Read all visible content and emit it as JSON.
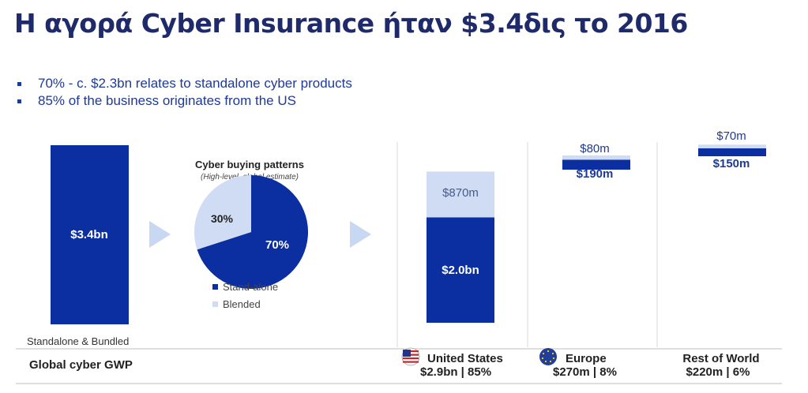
{
  "title": "Η αγορά Cyber Insurance ήταν $3.4δις το 2016",
  "bullets": [
    "70% - c. $2.3bn relates to standalone cyber products",
    "85% of the business originates from the US"
  ],
  "colors": {
    "dark": "#0b2fa0",
    "light": "#cfdcf3",
    "arrow": "#c9d8f2",
    "title": "#1f2a6b",
    "text": "#1f3a93"
  },
  "chart_data": [
    {
      "type": "bar",
      "categories": [
        "Standalone & Bundled"
      ],
      "values": [
        3.4
      ],
      "data_labels": [
        "$3.4bn"
      ],
      "footer": "Global cyber GWP"
    },
    {
      "type": "pie",
      "title": "Cyber buying patterns",
      "subtitle": "(High-level, global estimate)",
      "slices": [
        {
          "name": "Stand-alone",
          "value": 70,
          "label": "70%"
        },
        {
          "name": "Blended",
          "value": 30,
          "label": "30%"
        }
      ]
    },
    {
      "type": "bar",
      "stacked": true,
      "unit": "$m",
      "categories": [
        "United States",
        "Europe",
        "Rest of World"
      ],
      "series": [
        {
          "name": "Stand-alone",
          "values": [
            2000,
            190,
            150
          ],
          "labels": [
            "$2.0bn",
            "$190m",
            "$150m"
          ]
        },
        {
          "name": "Blended",
          "values": [
            870,
            80,
            70
          ],
          "labels": [
            "$870m",
            "$80m",
            "$70m"
          ]
        }
      ],
      "region_totals": [
        "$2.9bn | 85%",
        "$270m | 8%",
        "$220m | 6%"
      ],
      "icons": [
        "us-flag-icon",
        "eu-flag-icon",
        ""
      ]
    }
  ]
}
